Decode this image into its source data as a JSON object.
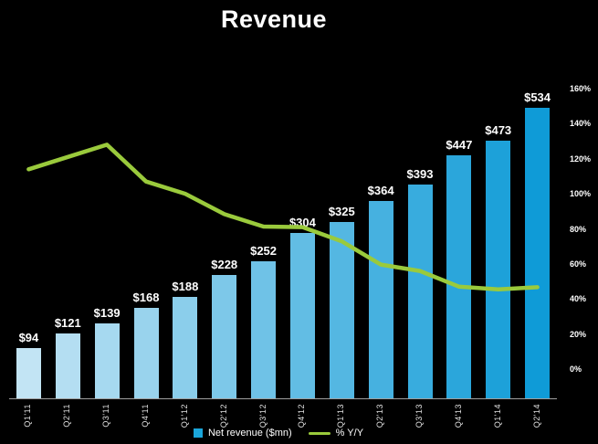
{
  "title": "Revenue",
  "legend": {
    "bar_label": "Net revenue ($mn)",
    "line_label": "% Y/Y"
  },
  "colors": {
    "background": "#000000",
    "bar_first": "#c2e4f4",
    "bar_last": "#0f9bd7",
    "line": "#9aca3c",
    "legend_swatch": "#1ba6da",
    "text": "#ffffff",
    "axis_line": "#9e9e9e"
  },
  "chart_data": {
    "type": "bar",
    "title": "Revenue",
    "categories": [
      "Q1'11",
      "Q2'11",
      "Q3'11",
      "Q4'11",
      "Q1'12",
      "Q2'12",
      "Q3'12",
      "Q4'12",
      "Q1'13",
      "Q2'13",
      "Q3'13",
      "Q4'13",
      "Q1'14",
      "Q2'14"
    ],
    "series": [
      {
        "name": "Net revenue ($mn)",
        "type": "bar",
        "axis": "left",
        "values": [
          94,
          121,
          139,
          168,
          188,
          228,
          252,
          304,
          325,
          364,
          393,
          447,
          473,
          534
        ],
        "data_labels": [
          "$94",
          "$121",
          "$139",
          "$168",
          "$188",
          "$228",
          "$252",
          "$304",
          "$325",
          "$364",
          "$393",
          "$447",
          "$473",
          "$534"
        ]
      },
      {
        "name": "% Y/Y",
        "type": "line",
        "axis": "right",
        "values": [
          114,
          121,
          128,
          107,
          100,
          88.4,
          81.3,
          81.0,
          72.9,
          59.6,
          56.0,
          47.0,
          45.5,
          46.7
        ]
      }
    ],
    "right_axis": {
      "min": 0,
      "max": 160,
      "tick_values": [
        0,
        20,
        40,
        60,
        80,
        100,
        120,
        140,
        160
      ],
      "tick_labels": [
        "0%",
        "20%",
        "40%",
        "60%",
        "80%",
        "100%",
        "120%",
        "140%",
        "160%"
      ]
    },
    "legend_position": "bottom",
    "grid": false
  }
}
